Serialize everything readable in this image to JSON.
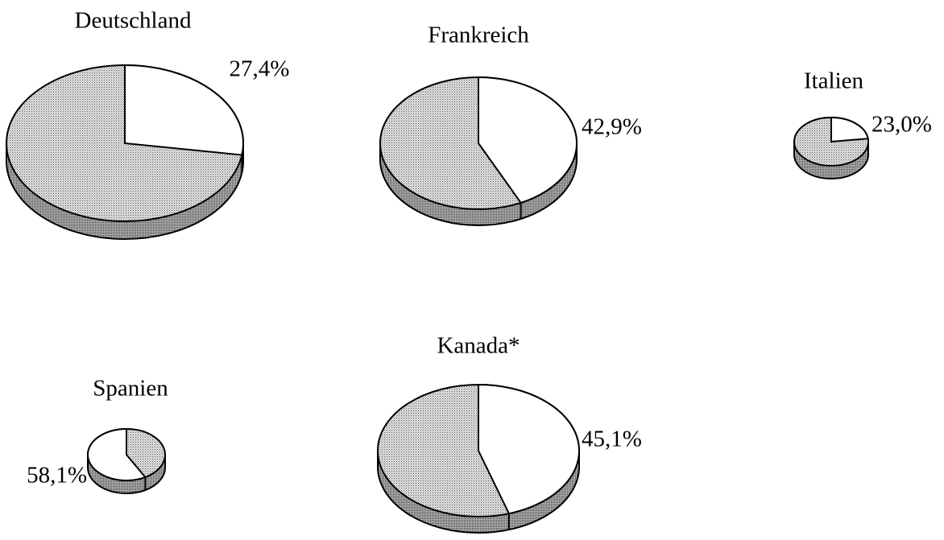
{
  "chart_data": [
    {
      "type": "pie",
      "title": "Deutschland",
      "values": [
        27.4
      ],
      "value_labels": [
        "27,4%"
      ],
      "color": "#ffffff"
    },
    {
      "type": "pie",
      "title": "Frankreich",
      "values": [
        42.9
      ],
      "value_labels": [
        "42,9%"
      ],
      "color": "#ffffff"
    },
    {
      "type": "pie",
      "title": "Italien",
      "values": [
        23.0
      ],
      "value_labels": [
        "23,0%"
      ],
      "color": "#ffffff"
    },
    {
      "type": "pie",
      "title": "Spanien",
      "values": [
        58.1
      ],
      "value_labels": [
        "58,1%"
      ],
      "color": "#ffffff"
    },
    {
      "type": "pie",
      "title": "Kanada*",
      "values": [
        45.1
      ],
      "value_labels": [
        "45,1%"
      ],
      "color": "#ffffff"
    }
  ]
}
